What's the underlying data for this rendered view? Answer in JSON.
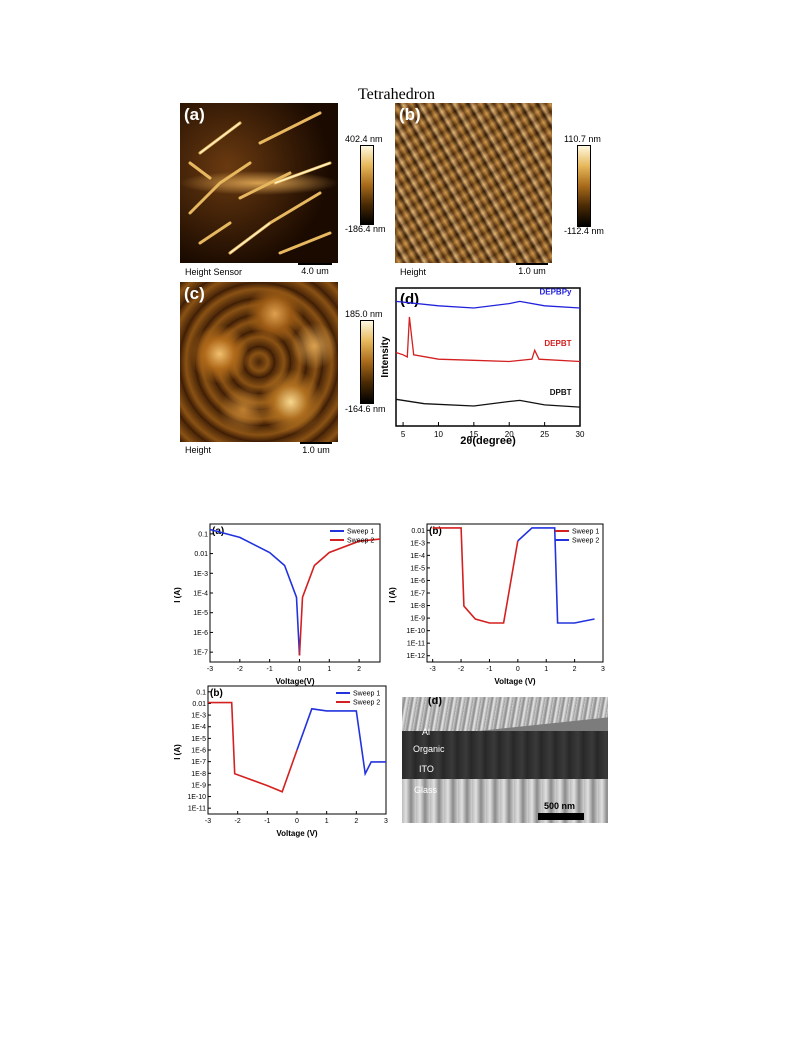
{
  "journal_header": "Tetrahedron",
  "afm": {
    "a": {
      "label": "(a)",
      "caption": "Height Sensor",
      "scale": "4.0 um",
      "cb_max": "402.4 nm",
      "cb_min": "-186.4 nm"
    },
    "b": {
      "label": "(b)",
      "caption": "Height",
      "scale": "1.0 um",
      "cb_max": "110.7 nm",
      "cb_min": "-112.4 nm"
    },
    "c": {
      "label": "(c)",
      "caption": "Height",
      "scale": "1.0 um",
      "cb_max": "185.0 nm",
      "cb_min": "-164.6 nm"
    }
  },
  "chart_data": [
    {
      "panel": "(d)",
      "type": "line",
      "xlabel": "2θ(degree)",
      "ylabel": "Intensity",
      "xlim": [
        4,
        30
      ],
      "xticks": [
        "5",
        "10",
        "15",
        "20",
        "25",
        "30"
      ],
      "series": [
        {
          "name": "DEPBPy",
          "color": "#2222dd",
          "x": [
            4,
            10,
            15,
            20,
            21.5,
            25,
            30
          ],
          "y": [
            5.6,
            5.4,
            5.3,
            5.5,
            5.6,
            5.4,
            5.3
          ]
        },
        {
          "name": "DEPBT",
          "color": "#d42020",
          "x": [
            4,
            5,
            5.6,
            5.9,
            6.5,
            10,
            15,
            20,
            23.2,
            23.6,
            24.2,
            30
          ],
          "y": [
            3.3,
            3.2,
            3.1,
            4.9,
            3.2,
            3.0,
            2.95,
            2.9,
            3.0,
            3.4,
            3.0,
            2.9
          ]
        },
        {
          "name": "DPBT",
          "color": "#111111",
          "x": [
            4,
            8,
            15,
            20,
            21.5,
            25,
            30
          ],
          "y": [
            1.2,
            1.0,
            0.9,
            1.1,
            1.15,
            0.95,
            0.85
          ]
        }
      ]
    },
    {
      "panel": "(a)",
      "type": "line",
      "xlabel": "Voltage(V)",
      "ylabel": "I (A)",
      "scale": "log",
      "xticks": [
        "-3",
        "-2",
        "-1",
        "0",
        "1",
        "2"
      ],
      "yticks": [
        "0.1",
        "0.01",
        "1E-3",
        "1E-4",
        "1E-5",
        "1E-6",
        "1E-7"
      ],
      "series": [
        {
          "name": "Sweep 1",
          "color": "#2233dd",
          "x": [
            -3,
            -2,
            -1,
            -0.5,
            -0.1,
            0
          ],
          "y": [
            0.07,
            0.03,
            0.006,
            0.0015,
            5e-05,
            1e-07
          ]
        },
        {
          "name": "Sweep 2",
          "color": "#d42020",
          "x": [
            0,
            0.1,
            0.5,
            1,
            2,
            2.7
          ],
          "y": [
            1e-07,
            5e-05,
            0.0015,
            0.006,
            0.02,
            0.025
          ]
        }
      ]
    },
    {
      "panel": "(b)",
      "type": "line",
      "xlabel": "Voltage (V)",
      "ylabel": "I (A)",
      "scale": "log",
      "xticks": [
        "-3",
        "-2",
        "-1",
        "0",
        "1",
        "2",
        "3"
      ],
      "yticks": [
        "0.01",
        "1E-3",
        "1E-4",
        "1E-5",
        "1E-6",
        "1E-7",
        "1E-8",
        "1E-9",
        "1E-10",
        "1E-11",
        "1E-12"
      ],
      "series": [
        {
          "name": "Sweep 1",
          "color": "#d42020",
          "x": [
            -3,
            -2,
            -1.9,
            -1.5,
            -1,
            -0.5,
            0
          ],
          "y": [
            0.01,
            0.01,
            1e-08,
            1e-09,
            5e-10,
            5e-10,
            0.001
          ]
        },
        {
          "name": "Sweep 2",
          "color": "#2233dd",
          "x": [
            0,
            0.5,
            1.3,
            1.4,
            2,
            2.7
          ],
          "y": [
            0.001,
            0.01,
            0.01,
            5e-10,
            5e-10,
            1e-09
          ]
        }
      ]
    },
    {
      "panel": "(b)",
      "type": "line",
      "xlabel": "Voltage (V)",
      "ylabel": "I (A)",
      "scale": "log",
      "xticks": [
        "-3",
        "-2",
        "-1",
        "0",
        "1",
        "2",
        "3"
      ],
      "yticks": [
        "0.1",
        "0.01",
        "1E-3",
        "1E-4",
        "1E-5",
        "1E-6",
        "1E-7",
        "1E-8",
        "1E-9",
        "1E-10",
        "1E-11"
      ],
      "series": [
        {
          "name": "Sweep 1",
          "color": "#2233dd",
          "x": [
            0,
            0.5,
            1,
            2,
            2.3,
            2.5,
            3
          ],
          "y": [
            1e-06,
            0.003,
            0.002,
            0.002,
            1e-08,
            1e-07,
            1e-07
          ]
        },
        {
          "name": "Sweep 2",
          "color": "#d42020",
          "x": [
            -3,
            -2.2,
            -2.1,
            -1,
            -0.5,
            0
          ],
          "y": [
            0.01,
            0.01,
            1e-08,
            1e-09,
            3e-10,
            1e-06
          ]
        }
      ]
    }
  ],
  "sem": {
    "label": "(d)",
    "layers": [
      "Al",
      "Organic",
      "ITO",
      "Glass"
    ],
    "scale": "500 nm"
  }
}
